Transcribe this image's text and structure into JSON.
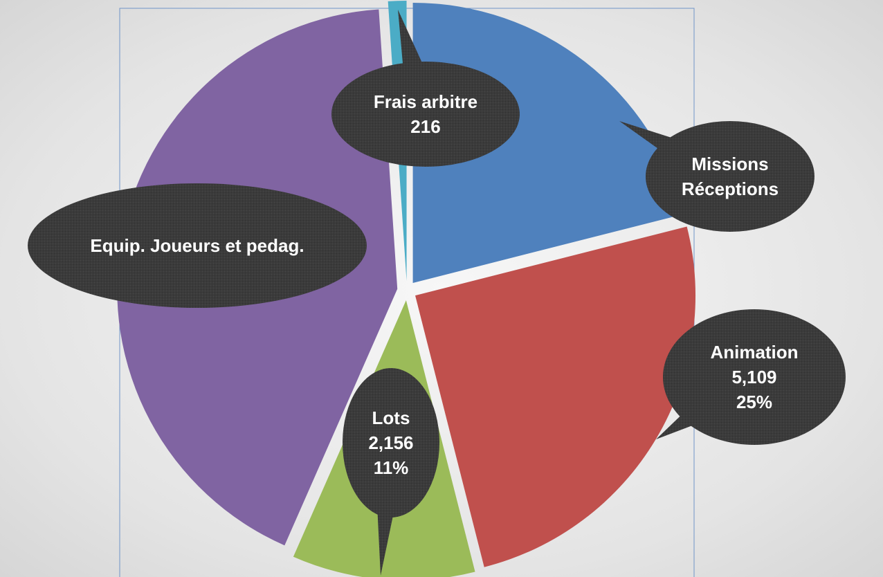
{
  "chart_data": {
    "type": "pie",
    "categories": [
      "Missions Réceptions",
      "Animation",
      "Lots",
      "Equip. Joueurs et pedag.",
      "Frais arbitre"
    ],
    "values": [
      4300,
      5109,
      2156,
      8655,
      216
    ],
    "value_labels": [
      null,
      "5,109",
      "2,156",
      null,
      "216"
    ],
    "percent_labels": [
      null,
      "25%",
      "11%",
      null,
      null
    ],
    "colors": [
      "#4f81bd",
      "#c0504d",
      "#9bbb59",
      "#8064a2",
      "#4bacc6"
    ]
  }
}
